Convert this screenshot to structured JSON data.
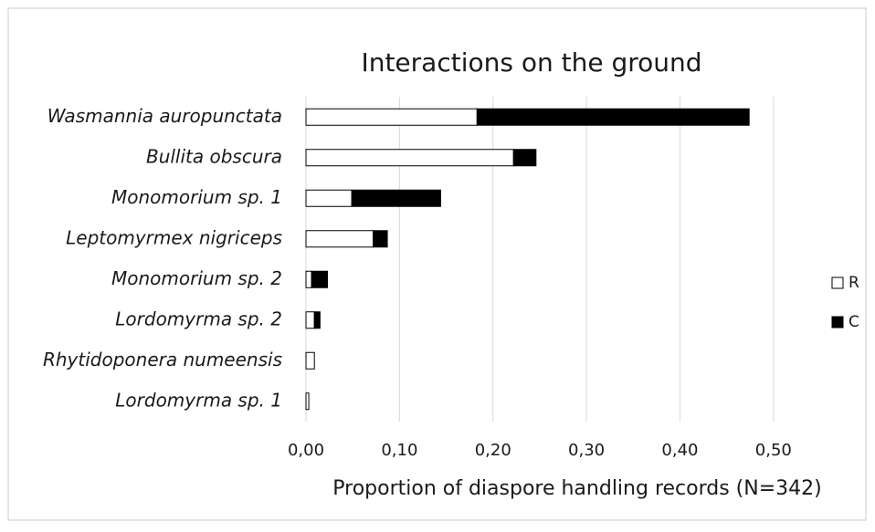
{
  "chart_data": {
    "type": "stacked_barh",
    "title": "Interactions on the ground",
    "xlabel": "Proportion of diaspore handling records (N=342)",
    "categories": [
      "Wasmannia auropunctata",
      "Bullita obscura",
      "Monomorium sp. 1",
      "Leptomyrmex nigriceps",
      "Monomorium sp. 2",
      "Lordomyrma sp. 2",
      "Rhytidoponera numeensis",
      "Lordomyrma sp. 1"
    ],
    "series": [
      {
        "name": "R",
        "color": "#ffffff",
        "values": [
          0.183,
          0.222,
          0.049,
          0.072,
          0.006,
          0.009,
          0.009,
          0.003
        ]
      },
      {
        "name": "C",
        "color": "#000000",
        "values": [
          0.291,
          0.024,
          0.095,
          0.015,
          0.017,
          0.006,
          0,
          0
        ]
      }
    ],
    "xlim": [
      0,
      0.55
    ],
    "xticks": [
      {
        "value": 0,
        "label": "0,00"
      },
      {
        "value": 0.1,
        "label": "0,10"
      },
      {
        "value": 0.2,
        "label": "0,20"
      },
      {
        "value": 0.3,
        "label": "0,30"
      },
      {
        "value": 0.4,
        "label": "0,40"
      },
      {
        "value": 0.5,
        "label": "0,50"
      }
    ],
    "grid": true,
    "legend": "right"
  }
}
